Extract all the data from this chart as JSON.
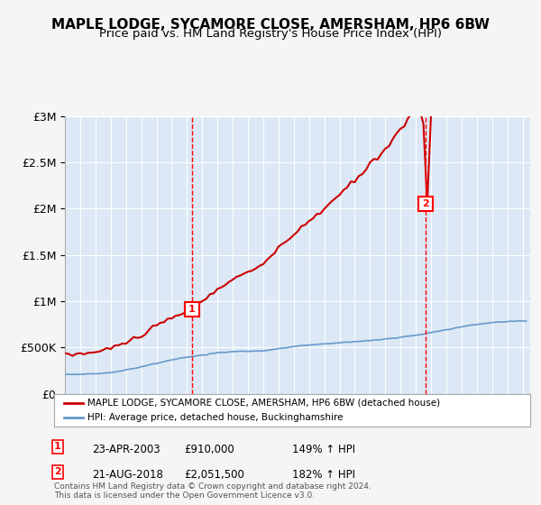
{
  "title1": "MAPLE LODGE, SYCAMORE CLOSE, AMERSHAM, HP6 6BW",
  "title2": "Price paid vs. HM Land Registry's House Price Index (HPI)",
  "bg_color": "#e8f0f8",
  "plot_bg": "#dce8f5",
  "sale1_date": 2003.31,
  "sale1_price": 910000,
  "sale1_label": "1",
  "sale2_date": 2018.64,
  "sale2_price": 2051500,
  "sale2_label": "2",
  "legend_line1": "MAPLE LODGE, SYCAMORE CLOSE, AMERSHAM, HP6 6BW (detached house)",
  "legend_line2": "HPI: Average price, detached house, Buckinghamshire",
  "note1_label": "1",
  "note1_date": "23-APR-2003",
  "note1_price": "£910,000",
  "note1_hpi": "149% ↑ HPI",
  "note2_label": "2",
  "note2_date": "21-AUG-2018",
  "note2_price": "£2,051,500",
  "note2_hpi": "182% ↑ HPI",
  "copyright": "Contains HM Land Registry data © Crown copyright and database right 2024.\nThis data is licensed under the Open Government Licence v3.0.",
  "ylabel_ticks": [
    "£0",
    "£500K",
    "£1M",
    "£1.5M",
    "£2M",
    "£2.5M",
    "£3M"
  ],
  "ylabel_values": [
    0,
    500000,
    1000000,
    1500000,
    2000000,
    2500000,
    3000000
  ],
  "xmin": 1995,
  "xmax": 2025.5,
  "ymin": 0,
  "ymax": 3000000
}
